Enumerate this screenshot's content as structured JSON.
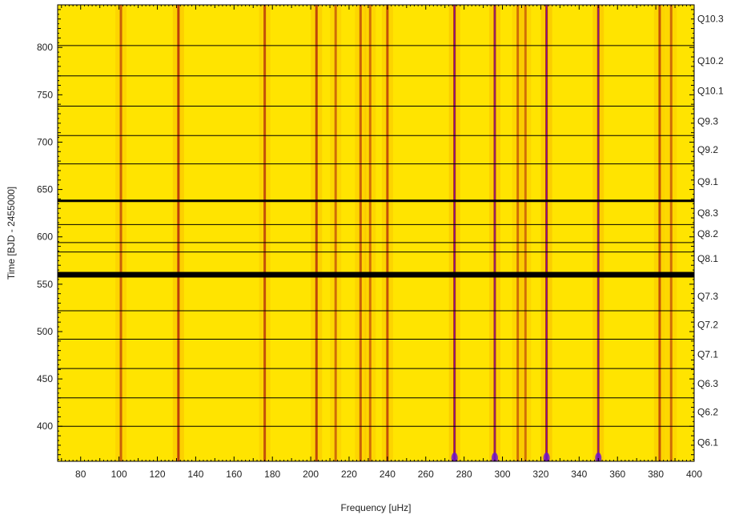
{
  "chart_data": {
    "type": "heatmap",
    "title": "",
    "xlabel": "Frequency [uHz]",
    "ylabel": "Time [BJD - 2455000]",
    "xlim": [
      68,
      400
    ],
    "ylim": [
      363,
      845
    ],
    "x_ticks": [
      80,
      100,
      120,
      140,
      160,
      180,
      200,
      220,
      240,
      260,
      280,
      300,
      320,
      340,
      360,
      380,
      400
    ],
    "y_ticks": [
      400,
      450,
      500,
      550,
      600,
      650,
      700,
      750,
      800
    ],
    "quarter_boundaries": [
      400,
      430,
      461,
      492,
      522,
      584,
      594,
      613,
      677,
      707,
      738,
      770,
      802
    ],
    "thick_boundaries": [
      {
        "y": 560,
        "weight": "heavy"
      },
      {
        "y": 638,
        "weight": "medium"
      }
    ],
    "quarter_labels": [
      {
        "label": "Q10.3",
        "y": 830
      },
      {
        "label": "Q10.2",
        "y": 786
      },
      {
        "label": "Q10.1",
        "y": 754
      },
      {
        "label": "Q9.3",
        "y": 722
      },
      {
        "label": "Q9.2",
        "y": 692
      },
      {
        "label": "Q9.1",
        "y": 658
      },
      {
        "label": "Q8.3",
        "y": 625
      },
      {
        "label": "Q8.2",
        "y": 603
      },
      {
        "label": "Q8.1",
        "y": 577
      },
      {
        "label": "Q7.3",
        "y": 537
      },
      {
        "label": "Q7.2",
        "y": 507
      },
      {
        "label": "Q7.1",
        "y": 476
      },
      {
        "label": "Q6.3",
        "y": 445
      },
      {
        "label": "Q6.2",
        "y": 415
      },
      {
        "label": "Q6.1",
        "y": 383
      }
    ],
    "ridges": [
      {
        "x": 101,
        "strength": 0.45
      },
      {
        "x": 131,
        "strength": 0.75
      },
      {
        "x": 176,
        "strength": 0.6
      },
      {
        "x": 203,
        "strength": 0.7
      },
      {
        "x": 213,
        "strength": 0.35
      },
      {
        "x": 226,
        "strength": 0.45
      },
      {
        "x": 231,
        "strength": 0.3
      },
      {
        "x": 240,
        "strength": 0.6
      },
      {
        "x": 275,
        "strength": 1.0
      },
      {
        "x": 296,
        "strength": 0.9
      },
      {
        "x": 308,
        "strength": 0.35
      },
      {
        "x": 312,
        "strength": 0.3
      },
      {
        "x": 323,
        "strength": 1.0
      },
      {
        "x": 350,
        "strength": 0.85
      },
      {
        "x": 382,
        "strength": 0.6
      },
      {
        "x": 388,
        "strength": 0.35
      }
    ],
    "colors": {
      "background": "#ffe400",
      "mid": "#f08a00",
      "ridge": "#a8120c",
      "peak": "#6a0fd6",
      "line": "#000000"
    }
  }
}
